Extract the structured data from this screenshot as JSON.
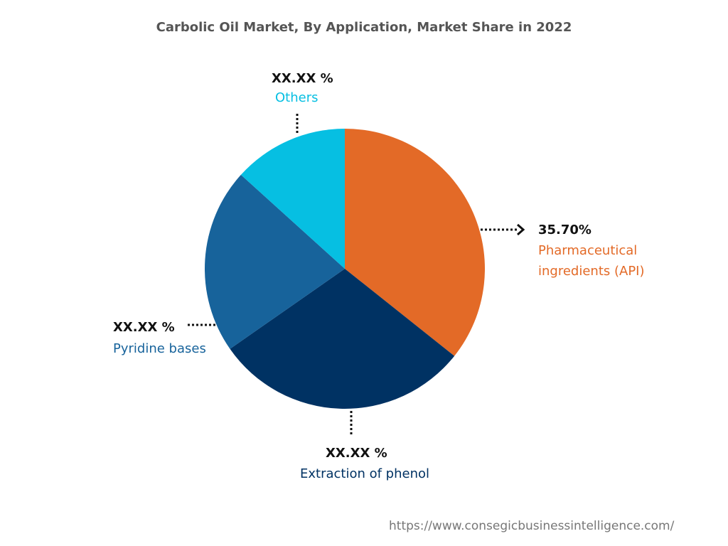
{
  "chart_data": {
    "type": "pie",
    "title": "Carbolic Oil Market, By Application, Market Share in 2022",
    "categories": [
      "Pharmaceutical ingredients (API)",
      "Extraction of phenol",
      "Pyridine bases",
      "Others"
    ],
    "values": [
      35.7,
      29.6,
      21.4,
      13.3
    ],
    "value_labels": [
      "35.70%",
      "XX.XX %",
      "XX.XX %",
      "XX.XX %"
    ],
    "colors": [
      "#e36a27",
      "#003263",
      "#17639b",
      "#06bfe2"
    ],
    "source": "https://www.consegicbusinessintelligence.com/"
  }
}
